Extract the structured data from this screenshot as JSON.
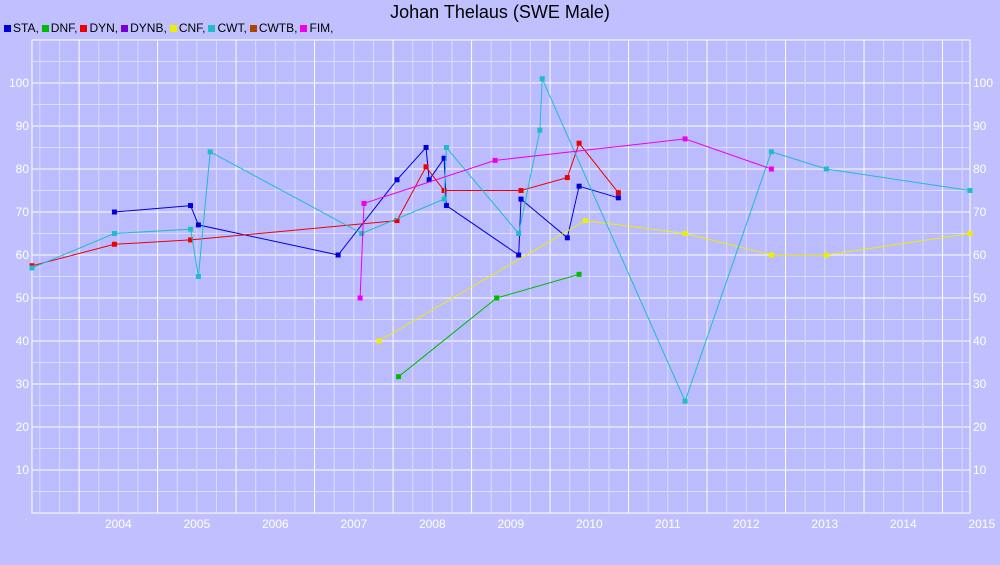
{
  "chart_data": {
    "type": "line",
    "title": "Johan Thelaus (SWE Male)",
    "legend_position": "top-left",
    "grid": true,
    "xlim": [
      2003.4,
      2015.35
    ],
    "ylim": [
      0,
      110
    ],
    "x_ticks": [
      "2004",
      "2005",
      "2006",
      "2007",
      "2008",
      "2009",
      "2010",
      "2011",
      "2012",
      "2013",
      "2014",
      "2015"
    ],
    "y_ticks": [
      "10",
      "20",
      "30",
      "40",
      "50",
      "60",
      "70",
      "80",
      "90",
      "100"
    ],
    "series": [
      {
        "name": "STA",
        "color": "#0000dd",
        "points": [
          [
            2004.45,
            70
          ],
          [
            2005.42,
            71.5
          ],
          [
            2005.52,
            67
          ],
          [
            2007.3,
            60
          ],
          [
            2008.05,
            77.5
          ],
          [
            2008.42,
            85
          ],
          [
            2008.46,
            77.5
          ],
          [
            2008.65,
            82.5
          ],
          [
            2008.68,
            71.5
          ],
          [
            2009.6,
            60
          ],
          [
            2009.63,
            73
          ],
          [
            2010.22,
            64
          ],
          [
            2010.37,
            76
          ],
          [
            2010.87,
            73.3
          ]
        ]
      },
      {
        "name": "DNF",
        "color": "#00bb00",
        "points": [
          [
            2008.07,
            31.7
          ],
          [
            2009.32,
            50
          ],
          [
            2010.37,
            55.5
          ]
        ]
      },
      {
        "name": "DYN",
        "color": "#ee0000",
        "points": [
          [
            2003.4,
            57.5
          ],
          [
            2004.45,
            62.5
          ],
          [
            2005.42,
            63.5
          ],
          [
            2008.05,
            68
          ],
          [
            2008.42,
            80.5
          ],
          [
            2008.65,
            75
          ],
          [
            2009.63,
            75
          ],
          [
            2010.22,
            78
          ],
          [
            2010.37,
            86
          ],
          [
            2010.87,
            74.5
          ]
        ]
      },
      {
        "name": "DYNB",
        "color": "#7700dd",
        "points": []
      },
      {
        "name": "CNF",
        "color": "#eeee00",
        "points": [
          [
            2007.82,
            40
          ],
          [
            2010.45,
            68
          ],
          [
            2011.72,
            65
          ],
          [
            2012.82,
            60
          ],
          [
            2013.52,
            60
          ],
          [
            2015.35,
            65
          ]
        ]
      },
      {
        "name": "CWT",
        "color": "#22bbcc",
        "points": [
          [
            2003.4,
            57
          ],
          [
            2004.45,
            65
          ],
          [
            2005.42,
            66
          ],
          [
            2005.52,
            55
          ],
          [
            2005.67,
            84
          ],
          [
            2007.6,
            65
          ],
          [
            2008.65,
            73
          ],
          [
            2008.68,
            85
          ],
          [
            2009.6,
            65
          ],
          [
            2009.87,
            89
          ],
          [
            2009.9,
            101
          ],
          [
            2011.72,
            26
          ],
          [
            2012.82,
            84
          ],
          [
            2013.52,
            80
          ],
          [
            2015.35,
            75
          ]
        ]
      },
      {
        "name": "CWTB",
        "color": "#aa4400",
        "points": []
      },
      {
        "name": "FIM",
        "color": "#ee00ee",
        "points": [
          [
            2007.58,
            50
          ],
          [
            2007.63,
            72
          ],
          [
            2009.3,
            82
          ],
          [
            2011.72,
            87
          ],
          [
            2012.82,
            80
          ]
        ]
      }
    ]
  }
}
